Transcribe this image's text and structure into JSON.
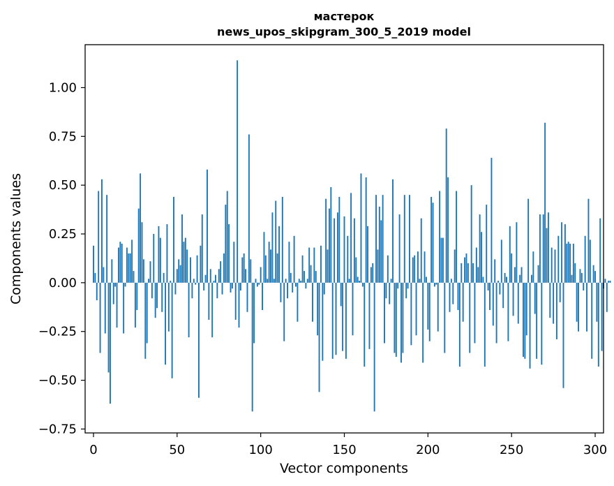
{
  "chart_data": {
    "type": "bar",
    "title": "мастерок",
    "subtitle": "news_upos_skipgram_300_5_2019 model",
    "xlabel": "Vector components",
    "ylabel": "Components values",
    "xlim": [
      -5,
      305
    ],
    "ylim": [
      -0.77,
      1.22
    ],
    "x_ticks": [
      0,
      50,
      100,
      150,
      200,
      250,
      300
    ],
    "x_tick_labels": [
      "0",
      "50",
      "100",
      "150",
      "200",
      "250",
      "300"
    ],
    "y_ticks": [
      -0.75,
      -0.5,
      -0.25,
      0.0,
      0.25,
      0.5,
      0.75,
      1.0
    ],
    "y_tick_labels": [
      "−0.75",
      "−0.50",
      "−0.25",
      "0.00",
      "0.25",
      "0.50",
      "0.75",
      "1.00"
    ],
    "bar_color": "#1f77b4",
    "values": [
      0.19,
      0.05,
      -0.09,
      0.47,
      -0.36,
      0.53,
      0.08,
      -0.26,
      0.45,
      -0.46,
      -0.62,
      0.12,
      -0.11,
      -0.02,
      -0.23,
      0.18,
      0.21,
      0.2,
      -0.26,
      -0.02,
      0.18,
      0.15,
      0.15,
      0.22,
      0.06,
      -0.23,
      -0.14,
      0.38,
      0.56,
      0.31,
      0.12,
      -0.39,
      -0.31,
      0.02,
      0.11,
      -0.08,
      0.25,
      -0.18,
      -0.13,
      0.29,
      0.23,
      -0.15,
      0.05,
      -0.42,
      0.3,
      -0.25,
      0.01,
      -0.49,
      0.44,
      -0.06,
      0.07,
      0.12,
      0.09,
      0.35,
      0.21,
      0.23,
      0.17,
      -0.28,
      0.13,
      -0.08,
      0.02,
      -0.01,
      0.14,
      -0.59,
      0.19,
      0.35,
      -0.04,
      0.04,
      0.58,
      -0.19,
      0.07,
      -0.28,
      0.01,
      0.04,
      -0.08,
      0.07,
      0.11,
      -0.06,
      0.15,
      0.4,
      0.47,
      0.3,
      -0.05,
      -0.03,
      0.21,
      -0.19,
      1.14,
      -0.23,
      -0.04,
      0.13,
      0.15,
      0.07,
      -0.15,
      0.76,
      0.12,
      -0.66,
      -0.31,
      0.02,
      -0.02,
      -0.01,
      0.08,
      -0.14,
      0.26,
      0.14,
      0.02,
      0.21,
      0.17,
      0.36,
      0.02,
      0.42,
      0.15,
      0.29,
      -0.1,
      0.44,
      -0.3,
      0.02,
      -0.08,
      0.21,
      0.05,
      -0.05,
      0.24,
      -0.02,
      -0.2,
      0.02,
      0.01,
      0.14,
      0.06,
      -0.03,
      0.02,
      0.18,
      0.09,
      -0.2,
      0.18,
      0.06,
      -0.27,
      -0.56,
      0.19,
      -0.4,
      -0.06,
      0.43,
      0.17,
      0.38,
      0.49,
      -0.39,
      0.33,
      -0.37,
      0.36,
      0.44,
      -0.12,
      -0.35,
      0.34,
      -0.39,
      0.24,
      0.02,
      0.46,
      -0.27,
      0.33,
      0.13,
      0.03,
      0.01,
      0.56,
      -0.02,
      -0.43,
      0.54,
      0.29,
      -0.34,
      0.08,
      0.1,
      -0.66,
      0.45,
      0.17,
      0.39,
      0.32,
      0.45,
      -0.31,
      -0.08,
      0.14,
      -0.11,
      0.02,
      0.53,
      -0.36,
      -0.38,
      -0.03,
      0.35,
      -0.41,
      -0.36,
      0.45,
      -0.08,
      -0.03,
      0.45,
      -0.32,
      0.13,
      0.14,
      -0.27,
      0.16,
      0.02,
      0.33,
      -0.41,
      0.16,
      0.03,
      -0.24,
      -0.3,
      0.44,
      0.41,
      -0.02,
      -0.01,
      -0.25,
      0.47,
      0.23,
      0.23,
      -0.36,
      0.79,
      0.54,
      -0.15,
      0.02,
      -0.11,
      0.17,
      0.47,
      -0.14,
      -0.43,
      0.1,
      -0.2,
      0.13,
      0.15,
      0.1,
      -0.36,
      0.5,
      0.1,
      -0.31,
      0.18,
      0.08,
      0.35,
      0.26,
      0.03,
      -0.43,
      0.4,
      -0.04,
      -0.14,
      0.64,
      -0.22,
      0.12,
      -0.31,
      0.01,
      -0.06,
      0.22,
      -0.13,
      0.05,
      0.03,
      -0.3,
      0.29,
      0.15,
      -0.17,
      0.08,
      0.31,
      -0.21,
      0.04,
      0.08,
      -0.38,
      -0.39,
      -0.27,
      0.43,
      -0.44,
      0.04,
      0.16,
      -0.16,
      -0.39,
      0.09,
      0.35,
      -0.42,
      0.35,
      0.82,
      0.28,
      0.36,
      -0.18,
      0.18,
      -0.21,
      0.17,
      -0.29,
      0.24,
      -0.1,
      0.31,
      -0.54,
      0.3,
      0.2,
      0.21,
      0.2,
      0.04,
      0.2,
      0.1,
      -0.2,
      -0.25,
      0.07,
      0.05,
      -0.04,
      0.24,
      -0.25,
      0.43,
      0.22,
      -0.39,
      0.09,
      0.06,
      -0.2,
      -0.43,
      0.33,
      -0.35,
      -0.03,
      0.02,
      -0.15,
      0.01,
      0.01
    ]
  }
}
